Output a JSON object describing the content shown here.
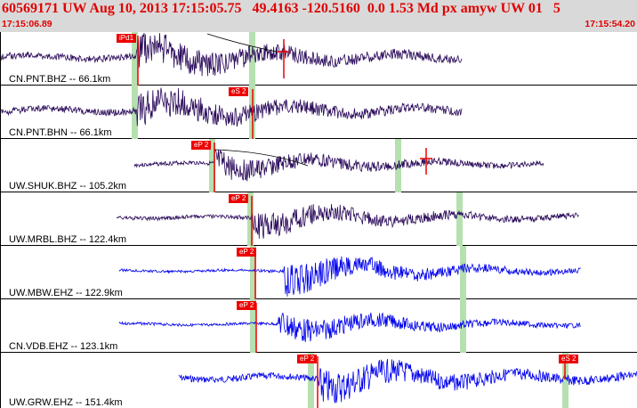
{
  "header": {
    "event_line": "60569171 UW Aug 10, 2013 17:15:05.75   49.4163 -120.5160  0.0 1.53 Md px amyw UW 01   5",
    "time_start": "17:15:06.89",
    "time_end": "17:15:54.20"
  },
  "colors": {
    "header_bg": "#d9d9d9",
    "header_text": "#e00000",
    "trace_dark": "#2a0a5a",
    "trace_blue": "#0000ee",
    "pick_red": "#ee0000",
    "window_green": "#b6e0b0"
  },
  "traces": [
    {
      "label": "CN.PNT.BHZ -- 66.1km",
      "pick": "iPd1",
      "color": "dark"
    },
    {
      "label": "CN.PNT.BHN -- 66.1km",
      "pick": "eS 2",
      "color": "dark"
    },
    {
      "label": "UW.SHUK.BHZ -- 105.2km",
      "pick": "eP 2",
      "color": "dark"
    },
    {
      "label": "UW.MRBL.BHZ -- 122.4km",
      "pick": "eP 2",
      "color": "dark"
    },
    {
      "label": "UW.MBW.EHZ -- 122.9km",
      "pick": "eP 2",
      "color": "blue"
    },
    {
      "label": "CN.VDB.EHZ -- 123.1km",
      "pick": "eP 2",
      "color": "blue"
    },
    {
      "label": "UW.GRW.EHZ -- 151.4km",
      "pick": "eP 2",
      "color": "blue",
      "extra_pick": "eS 2"
    }
  ]
}
